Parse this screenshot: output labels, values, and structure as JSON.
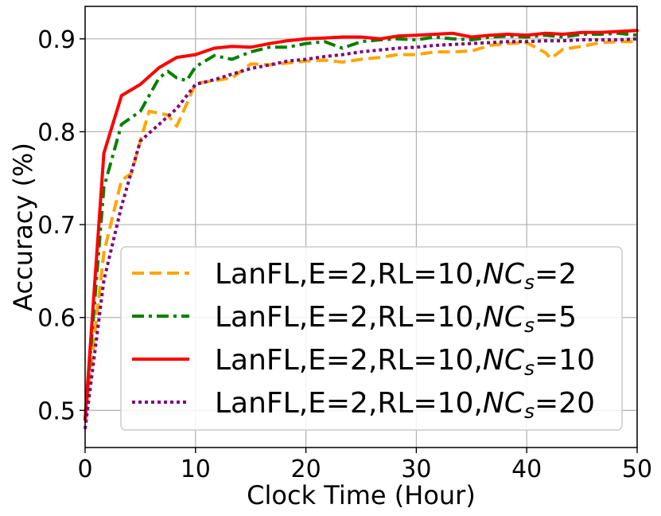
{
  "chart_data": {
    "type": "line",
    "xlabel": "Clock Time (Hour)",
    "ylabel": "Accuracy (%)",
    "xlim": [
      0,
      50
    ],
    "ylim": [
      0.46,
      0.935
    ],
    "xticks": [
      0,
      10,
      20,
      30,
      40,
      50
    ],
    "yticks": [
      0.5,
      0.6,
      0.7,
      0.8,
      0.9
    ],
    "xtick_labels": [
      "0",
      "10",
      "20",
      "30",
      "40",
      "50"
    ],
    "ytick_labels": [
      "0.5",
      "0.6",
      "0.7",
      "0.8",
      "0.9"
    ],
    "grid": true,
    "legend_position": "bottom-right",
    "series": [
      {
        "name": "LanFL,E=2,RL=10,NCs=2",
        "legend_prefix": "LanFL,E=2,RL=10,",
        "legend_italic": "NC",
        "legend_sub": "s",
        "legend_suffix": "=2",
        "color": "#ffa500",
        "style": "dashed",
        "x": [
          0,
          1.7,
          3.3,
          4.2,
          5.0,
          5.8,
          6.7,
          7.5,
          8.3,
          9.2,
          10.0,
          11.7,
          13.3,
          15.0,
          16.7,
          18.3,
          20.0,
          21.7,
          23.3,
          25.0,
          26.7,
          28.3,
          30.0,
          31.7,
          33.3,
          35.0,
          36.7,
          38.3,
          40.0,
          41.7,
          42.2,
          43.3,
          45.0,
          46.7,
          48.3,
          50.0
        ],
        "y": [
          0.49,
          0.67,
          0.748,
          0.755,
          0.79,
          0.822,
          0.82,
          0.818,
          0.806,
          0.83,
          0.852,
          0.855,
          0.858,
          0.873,
          0.872,
          0.874,
          0.876,
          0.877,
          0.875,
          0.878,
          0.88,
          0.883,
          0.883,
          0.886,
          0.886,
          0.887,
          0.893,
          0.895,
          0.896,
          0.885,
          0.879,
          0.889,
          0.892,
          0.896,
          0.897,
          0.897
        ]
      },
      {
        "name": "LanFL,E=2,RL=10,NCs=5",
        "legend_prefix": "LanFL,E=2,RL=10,",
        "legend_italic": "NC",
        "legend_sub": "s",
        "legend_suffix": "=5",
        "color": "#008000",
        "style": "dashdot",
        "x": [
          0,
          1.7,
          3.3,
          5.0,
          6.7,
          7.5,
          8.3,
          9.2,
          10.0,
          11.7,
          13.3,
          15.0,
          16.7,
          18.3,
          20.0,
          21.7,
          23.3,
          25.0,
          26.7,
          28.3,
          30.0,
          31.7,
          33.3,
          35.0,
          36.7,
          38.3,
          40.0,
          41.7,
          43.3,
          45.0,
          46.7,
          48.3,
          50.0
        ],
        "y": [
          0.49,
          0.74,
          0.808,
          0.822,
          0.858,
          0.865,
          0.858,
          0.855,
          0.87,
          0.882,
          0.878,
          0.886,
          0.891,
          0.891,
          0.895,
          0.897,
          0.89,
          0.897,
          0.899,
          0.9,
          0.899,
          0.902,
          0.9,
          0.899,
          0.902,
          0.903,
          0.902,
          0.904,
          0.902,
          0.905,
          0.905,
          0.906,
          0.904
        ]
      },
      {
        "name": "LanFL,E=2,RL=10,NCs=10",
        "legend_prefix": "LanFL,E=2,RL=10,",
        "legend_italic": "NC",
        "legend_sub": "s",
        "legend_suffix": "=10",
        "color": "#ff0000",
        "style": "solid",
        "x": [
          0,
          1.7,
          3.3,
          5.0,
          6.7,
          8.3,
          10.0,
          11.7,
          13.3,
          15.0,
          16.7,
          18.3,
          20.0,
          21.7,
          23.3,
          25.0,
          26.7,
          28.3,
          30.0,
          31.7,
          33.3,
          35.0,
          36.7,
          38.3,
          40.0,
          41.7,
          43.3,
          45.0,
          46.7,
          48.3,
          50.0
        ],
        "y": [
          0.49,
          0.777,
          0.839,
          0.851,
          0.869,
          0.88,
          0.883,
          0.89,
          0.892,
          0.891,
          0.895,
          0.898,
          0.9,
          0.901,
          0.902,
          0.902,
          0.9,
          0.903,
          0.904,
          0.905,
          0.906,
          0.902,
          0.904,
          0.905,
          0.904,
          0.906,
          0.905,
          0.907,
          0.907,
          0.908,
          0.909
        ]
      },
      {
        "name": "LanFL,E=2,RL=10,NCs=20",
        "legend_prefix": "LanFL,E=2,RL=10,",
        "legend_italic": "NC",
        "legend_sub": "s",
        "legend_suffix": "=20",
        "color": "#800080",
        "style": "dotted",
        "x": [
          0,
          1.7,
          3.3,
          5.0,
          6.7,
          8.3,
          10.0,
          11.7,
          13.3,
          15.0,
          16.7,
          18.3,
          20.0,
          21.7,
          23.3,
          25.0,
          26.7,
          28.3,
          30.0,
          31.7,
          33.3,
          35.0,
          36.7,
          38.3,
          40.0,
          41.7,
          43.3,
          45.0,
          46.7,
          48.3,
          50.0
        ],
        "y": [
          0.48,
          0.64,
          0.72,
          0.79,
          0.808,
          0.825,
          0.851,
          0.856,
          0.862,
          0.868,
          0.872,
          0.876,
          0.878,
          0.881,
          0.883,
          0.886,
          0.888,
          0.89,
          0.891,
          0.893,
          0.894,
          0.895,
          0.896,
          0.897,
          0.897,
          0.898,
          0.898,
          0.899,
          0.899,
          0.899,
          0.9
        ]
      }
    ]
  }
}
